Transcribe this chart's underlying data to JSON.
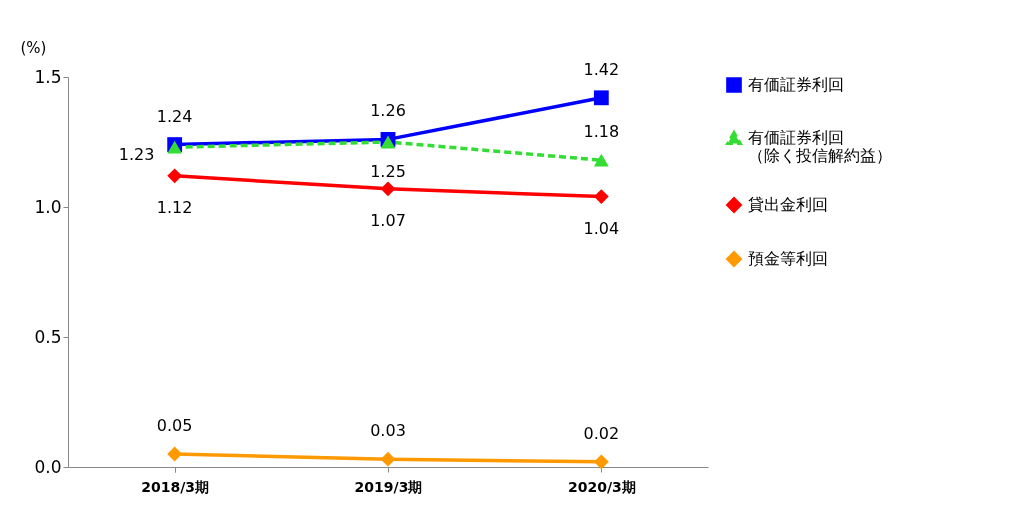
{
  "chart_data": {
    "type": "line",
    "ylabel": "(%)",
    "categories": [
      "2018/3期",
      "2019/3期",
      "2020/3期"
    ],
    "series": [
      {
        "name": "有価証券利回",
        "color": "#0000ff",
        "values": [
          1.24,
          1.26,
          1.42
        ],
        "marker": "square",
        "line_style": "solid"
      },
      {
        "name": "有価証券利回（除く投信解約益）",
        "color": "#33dd33",
        "values": [
          1.23,
          1.25,
          1.18
        ],
        "marker": "triangle",
        "line_style": "dashed"
      },
      {
        "name": "貸出金利回",
        "color": "#ff0000",
        "values": [
          1.12,
          1.07,
          1.04
        ],
        "marker": "diamond",
        "line_style": "solid"
      },
      {
        "name": "預金等利回",
        "color": "#ff9900",
        "values": [
          0.05,
          0.03,
          0.02
        ],
        "marker": "diamond",
        "line_style": "solid"
      }
    ],
    "ylim": [
      0,
      1.5
    ],
    "yticks": [
      {
        "value": 0,
        "label": "0.0"
      },
      0.5,
      {
        "value": 1,
        "label": "1.0"
      },
      1.5
    ],
    "grid": false,
    "legend": "right",
    "data_labels": true
  }
}
